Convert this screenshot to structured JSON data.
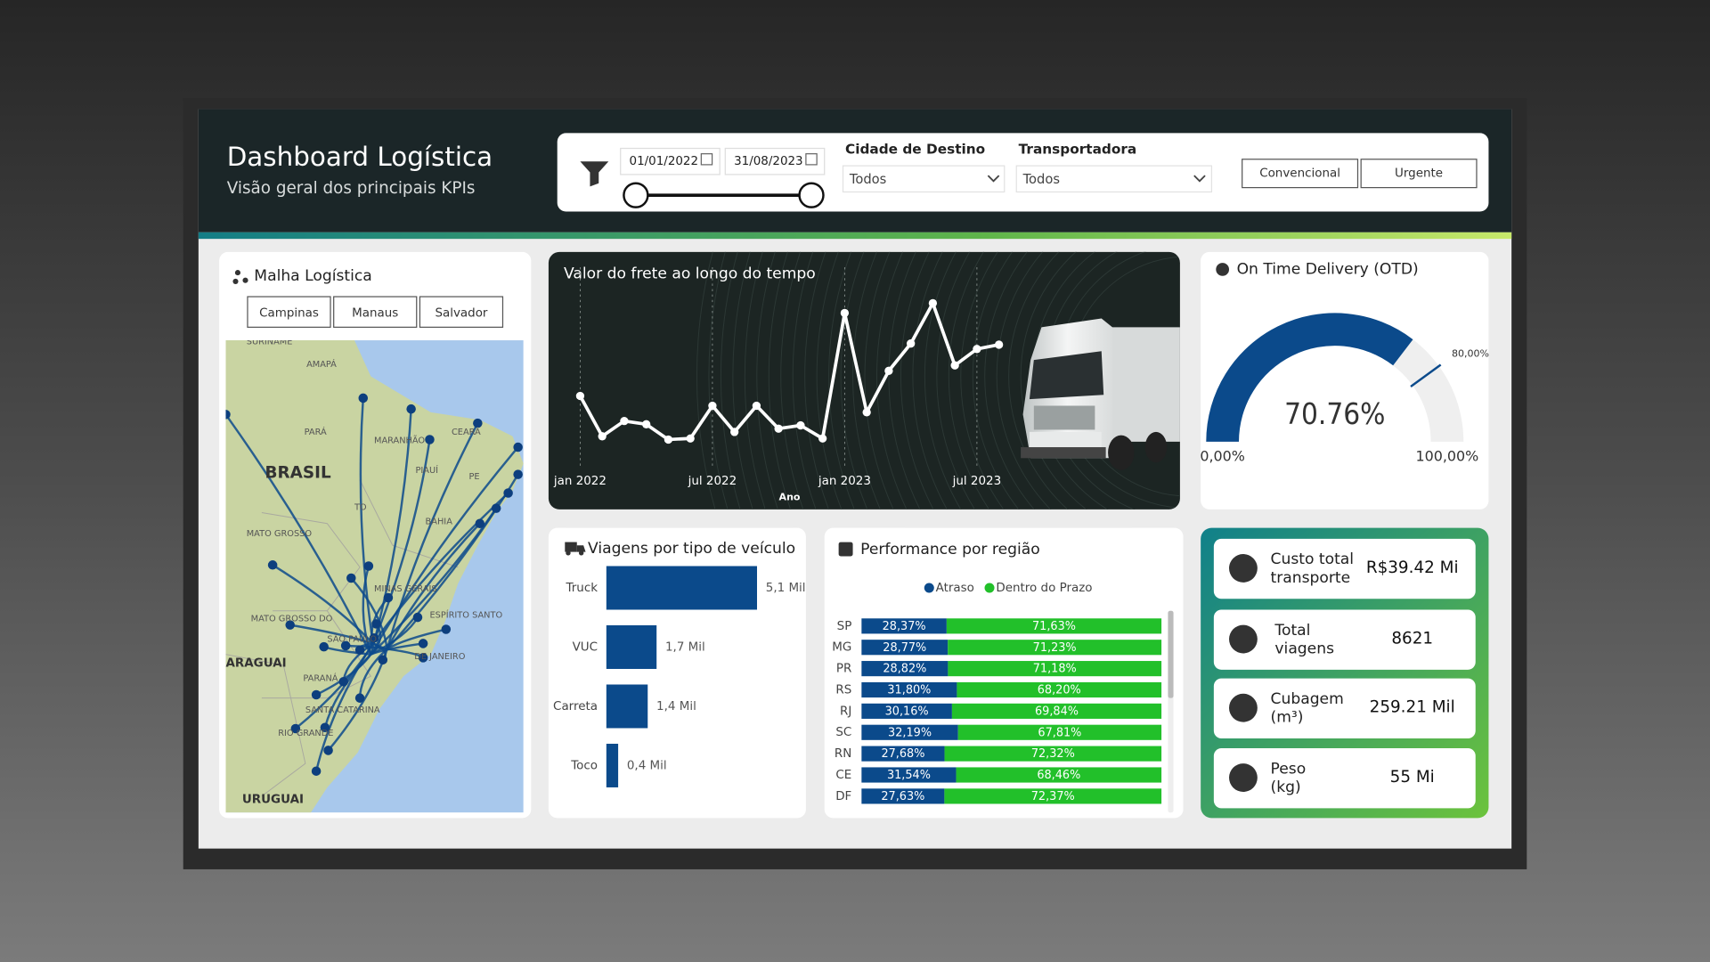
{
  "header": {
    "title": "Dashboard Logística",
    "subtitle": "Visão geral dos principais KPIs"
  },
  "filters": {
    "date_start": "01/01/2022",
    "date_end": "31/08/2023",
    "city": {
      "label": "Cidade de Destino",
      "value": "Todos"
    },
    "carrier": {
      "label": "Transportadora",
      "value": "Todos"
    },
    "buttons": [
      "Convencional",
      "Urgente"
    ]
  },
  "map": {
    "title": "Malha Logística",
    "buttons": [
      "Campinas",
      "Manaus",
      "Salvador"
    ],
    "labels": [
      "SURINAME",
      "AMAPÁ",
      "PARÁ",
      "MARANHÃO",
      "CEARÁ",
      "BRASIL",
      "PIAUÍ",
      "PE",
      "TO",
      "BAHIA",
      "MATO GROSSO",
      "MINAS GERAIS",
      "MATO GROSSO DO",
      "SÃO PAULO",
      "ESPÍRITO SANTO",
      "DE JANEIRO",
      "ARAGUAI",
      "PARANÁ",
      "SANTA CATARINA",
      "RIO GRANDE",
      "URUGUAI"
    ]
  },
  "kpis": [
    {
      "label": [
        "Custo total",
        "transporte"
      ],
      "value": "R$39.42 Mi"
    },
    {
      "label": [
        "Total",
        "viagens"
      ],
      "value": "8621"
    },
    {
      "label": [
        "Cubagem",
        "(m³)"
      ],
      "value": "259.21 Mil"
    },
    {
      "label": [
        "Peso",
        "(kg)"
      ],
      "value": "55 Mi"
    }
  ],
  "chart_data": [
    {
      "type": "line",
      "title": "Valor do frete ao longo do tempo",
      "x_label": "Ano",
      "x": [
        "2022-01",
        "2022-02",
        "2022-03",
        "2022-04",
        "2022-05",
        "2022-06",
        "2022-07",
        "2022-08",
        "2022-09",
        "2022-10",
        "2022-11",
        "2022-12",
        "2023-01",
        "2023-02",
        "2023-03",
        "2023-04",
        "2023-05",
        "2023-06",
        "2023-07",
        "2023-08"
      ],
      "values": [
        67,
        30,
        44,
        41,
        27,
        28,
        58,
        34,
        58,
        37,
        40,
        28,
        143,
        52,
        90,
        115,
        152,
        95,
        110,
        114
      ],
      "color": "#ffffff",
      "xlim": [
        "2022-01",
        "2023-08"
      ],
      "xticks": [
        {
          "value": "2022-01",
          "label": "jan 2022"
        },
        {
          "value": "2022-07",
          "label": "jul 2022"
        },
        {
          "value": "2023-01",
          "label": "jan 2023"
        },
        {
          "value": "2023-07",
          "label": "jul 2023"
        }
      ],
      "ylim": [
        0,
        170
      ],
      "grid": true
    },
    {
      "type": "hbar",
      "title": "Viagens por tipo de veículo",
      "categories": [
        "Truck",
        "VUC",
        "Carreta",
        "Toco"
      ],
      "values": [
        5.1,
        1.7,
        1.4,
        0.4
      ],
      "value_labels": [
        "5,1 Mil",
        "1,7 Mil",
        "1,4 Mil",
        "0,4 Mil"
      ],
      "color": "#0b4a8b",
      "xlim": [
        0,
        5.5
      ]
    },
    {
      "type": "stacked_hbar",
      "title": "Performance por região",
      "categories": [
        "SP",
        "MG",
        "PR",
        "RS",
        "RJ",
        "SC",
        "RN",
        "CE",
        "DF"
      ],
      "series": [
        {
          "name": "Atraso",
          "color": "#0b4a8b",
          "values": [
            28.37,
            28.77,
            28.82,
            31.8,
            30.16,
            32.19,
            27.68,
            31.54,
            27.63
          ],
          "value_labels": [
            "28,37%",
            "28,77%",
            "28,82%",
            "31,80%",
            "30,16%",
            "32,19%",
            "27,68%",
            "31,54%",
            "27,63%"
          ]
        },
        {
          "name": "Dentro do Prazo",
          "color": "#22c02a",
          "values": [
            71.63,
            71.23,
            71.18,
            68.2,
            69.84,
            67.81,
            72.32,
            68.46,
            72.37
          ],
          "value_labels": [
            "71,63%",
            "71,23%",
            "71,18%",
            "68,20%",
            "69,84%",
            "67,81%",
            "72,32%",
            "68,46%",
            "72,37%"
          ]
        }
      ],
      "xlim": [
        0,
        100
      ]
    },
    {
      "type": "gauge",
      "title": "On Time Delivery (OTD)",
      "values": [
        70.76
      ],
      "value_labels": [
        "70.76%"
      ],
      "target": 80,
      "target_label": "80,00%",
      "color": "#0b4a8b",
      "ylim": [
        0,
        100
      ],
      "yticks": [
        {
          "value": 0,
          "label": "0,00%"
        },
        {
          "value": 100,
          "label": "100,00%"
        }
      ]
    }
  ]
}
